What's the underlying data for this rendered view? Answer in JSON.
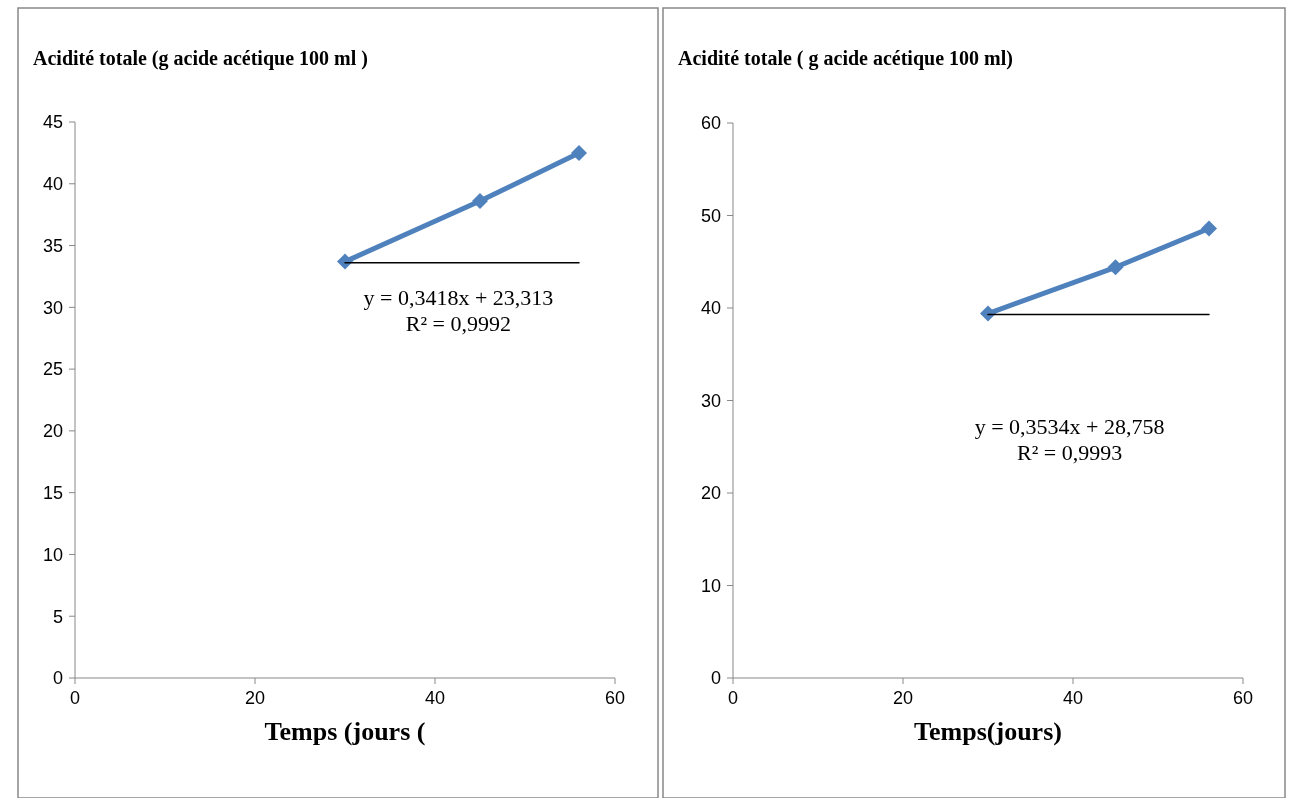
{
  "chart_data": [
    {
      "type": "line",
      "title": "Acidité totale (g acide acétique 100 ml )",
      "xlabel": "Temps (jours (",
      "xlim": [
        0,
        60
      ],
      "xticks": [
        0,
        20,
        40,
        60
      ],
      "ylim": [
        0,
        45
      ],
      "yticks": [
        0,
        5,
        10,
        15,
        20,
        25,
        30,
        35,
        40,
        45
      ],
      "grid": false,
      "series": [
        {
          "color": "#4f81bd",
          "x": [
            30,
            45,
            56
          ],
          "values": [
            33.7,
            38.6,
            42.5
          ],
          "marker": "diamond"
        },
        {
          "color": "#000000",
          "x": [
            30,
            56
          ],
          "values": [
            33.6,
            33.6
          ],
          "marker": "none"
        }
      ],
      "annotations": [
        "y = 0,3418x + 23,313",
        "R² = 0,9992"
      ]
    },
    {
      "type": "line",
      "title": "Acidité totale ( g acide acétique 100 ml)",
      "xlabel": "Temps(jours)",
      "xlim": [
        0,
        60
      ],
      "xticks": [
        0,
        20,
        40,
        60
      ],
      "ylim": [
        0,
        60
      ],
      "yticks": [
        0,
        10,
        20,
        30,
        40,
        50,
        60
      ],
      "grid": false,
      "series": [
        {
          "color": "#4f81bd",
          "x": [
            30,
            45,
            56
          ],
          "values": [
            39.4,
            44.4,
            48.6
          ],
          "marker": "diamond"
        },
        {
          "color": "#000000",
          "x": [
            30,
            56
          ],
          "values": [
            39.3,
            39.3
          ],
          "marker": "none"
        }
      ],
      "annotations": [
        "y = 0,3534x + 28,758",
        "R² = 0,9993"
      ]
    }
  ]
}
